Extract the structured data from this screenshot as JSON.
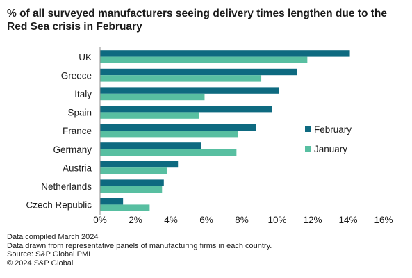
{
  "chart_data": {
    "type": "bar",
    "orientation": "horizontal",
    "title_lines": [
      "% of all surveyed manufacturers seeing delivery times lengthen due to the",
      "Red Sea crisis in February"
    ],
    "categories": [
      "UK",
      "Greece",
      "Italy",
      "Spain",
      "France",
      "Germany",
      "Austria",
      "Netherlands",
      "Czech Republic"
    ],
    "series": [
      {
        "name": "February",
        "color": "#0e6a80",
        "values": [
          14.1,
          11.1,
          10.1,
          9.7,
          8.8,
          5.7,
          4.4,
          3.6,
          1.3
        ]
      },
      {
        "name": "January",
        "color": "#58bfa1",
        "values": [
          11.7,
          9.1,
          5.9,
          5.6,
          7.8,
          7.7,
          3.8,
          3.5,
          2.8
        ]
      }
    ],
    "xlim": [
      0,
      16
    ],
    "x_ticks": [
      "0%",
      "2%",
      "4%",
      "6%",
      "8%",
      "10%",
      "12%",
      "14%",
      "16%"
    ],
    "legend_position": "right",
    "grid": false
  },
  "notes": [
    "Data compiled March 2024",
    "Data drawn from representative panels of manufacturing firms in each country.",
    "Source: S&P Global PMI",
    "© 2024 S&P Global"
  ]
}
